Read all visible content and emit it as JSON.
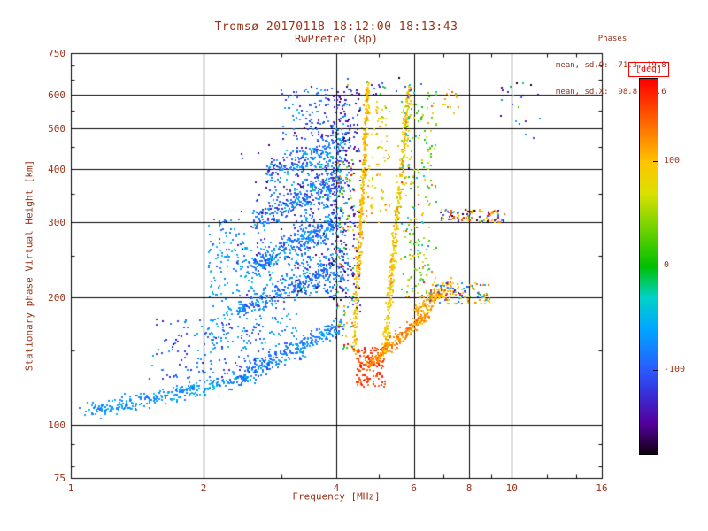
{
  "header": {
    "title": "Tromsø 20170118 18:12:00-18:13:43",
    "subtitle": "RwPretec (8p)",
    "stats_title": "Phases",
    "stats_line_o": "mean, sd,O: -71.3, 19.8",
    "stats_line_x": "mean, sd,X:  98.8, 21.6"
  },
  "axes": {
    "x_label": "Frequency [MHz]",
    "y_label": "Stationary phase Virtual Height [km]",
    "x_scale": "log",
    "y_scale": "log",
    "x_range": [
      1,
      16
    ],
    "y_range": [
      75,
      750
    ],
    "x_ticks": [
      1,
      2,
      4,
      6,
      8,
      10,
      16
    ],
    "y_ticks": [
      75,
      100,
      200,
      300,
      400,
      500,
      600,
      750
    ],
    "x_grid": [
      2,
      4,
      6,
      8,
      10
    ],
    "y_grid": [
      100,
      200,
      300,
      400,
      500,
      600
    ],
    "x_minor": [
      3,
      5,
      7,
      9,
      12,
      14
    ],
    "y_minor": [
      80,
      90,
      150,
      250,
      350,
      450,
      550,
      650,
      700
    ]
  },
  "colorbar": {
    "title": "[deg]",
    "range": [
      -180,
      180
    ],
    "tick_values": [
      100,
      0,
      -100
    ],
    "stops": [
      [
        -180,
        "#120012"
      ],
      [
        -150,
        "#55009e"
      ],
      [
        -120,
        "#3434dc"
      ],
      [
        -100,
        "#2a5aff"
      ],
      [
        -60,
        "#00a6ff"
      ],
      [
        -30,
        "#00d2c8"
      ],
      [
        0,
        "#00c000"
      ],
      [
        40,
        "#7cd400"
      ],
      [
        70,
        "#dce000"
      ],
      [
        100,
        "#ffc400"
      ],
      [
        130,
        "#ff7a00"
      ],
      [
        160,
        "#ff3000"
      ],
      [
        180,
        "#ff0000"
      ]
    ]
  },
  "colors": {
    "text": "#993016",
    "axis": "#000000",
    "deg_box": "#ff0000",
    "background": "#ffffff"
  },
  "chart_data": {
    "type": "scatter",
    "title": "Tromsø 20170118 18:12:00-18:13:43",
    "subtitle": "RwPretec (8p)",
    "xlabel": "Frequency [MHz]",
    "ylabel": "Stationary phase Virtual Height [km]",
    "color_label": "[deg]",
    "xlim": [
      1,
      16
    ],
    "ylim": [
      75,
      750
    ],
    "color_lim": [
      -180,
      180
    ],
    "x_scale": "log",
    "y_scale": "log",
    "grid": true,
    "marker_size_px": 2,
    "seed": 20170118,
    "clusters": [
      {
        "name": "e-tail",
        "kind": "band",
        "n": 260,
        "x": [
          1.08,
          2.3
        ],
        "y": [
          107,
          126
        ],
        "jx": 0.015,
        "jy": 0.02,
        "phase": [
          -70,
          15
        ]
      },
      {
        "name": "e-band",
        "kind": "band",
        "n": 320,
        "x": [
          2.3,
          4.15
        ],
        "y": [
          126,
          172
        ],
        "jx": 0.012,
        "jy": 0.025,
        "phase": [
          -80,
          18
        ]
      },
      {
        "name": "e-scatter",
        "kind": "blob",
        "n": 140,
        "x": [
          1.5,
          2.7
        ],
        "y": [
          128,
          178
        ],
        "phase": [
          -100,
          25
        ]
      },
      {
        "name": "left-arc",
        "kind": "blob",
        "n": 60,
        "x": [
          2.05,
          2.5
        ],
        "y": [
          235,
          305
        ],
        "phase": [
          -70,
          20
        ]
      },
      {
        "name": "f-arc-1",
        "kind": "band",
        "n": 240,
        "x": [
          2.4,
          3.9
        ],
        "y": [
          186,
          232
        ],
        "jx": 0.01,
        "jy": 0.03,
        "phase": [
          -85,
          18
        ]
      },
      {
        "name": "f-arc-2",
        "kind": "band",
        "n": 280,
        "x": [
          2.5,
          4.0
        ],
        "y": [
          232,
          300
        ],
        "jx": 0.01,
        "jy": 0.035,
        "phase": [
          -80,
          20
        ]
      },
      {
        "name": "f-arc-3",
        "kind": "band",
        "n": 280,
        "x": [
          2.6,
          4.1
        ],
        "y": [
          300,
          382
        ],
        "jx": 0.01,
        "jy": 0.04,
        "phase": [
          -88,
          22
        ]
      },
      {
        "name": "f-arc-4",
        "kind": "band",
        "n": 230,
        "x": [
          2.8,
          4.25
        ],
        "y": [
          382,
          470
        ],
        "jx": 0.01,
        "jy": 0.04,
        "phase": [
          -85,
          25
        ]
      },
      {
        "name": "f-upper",
        "kind": "blob",
        "n": 120,
        "x": [
          3.0,
          4.3
        ],
        "y": [
          470,
          625
        ],
        "phase": [
          -92,
          35
        ]
      },
      {
        "name": "cyan-low",
        "kind": "blob",
        "n": 210,
        "x": [
          2.05,
          3.25
        ],
        "y": [
          150,
          262
        ],
        "phase": [
          -62,
          16
        ]
      },
      {
        "name": "mid-dense",
        "kind": "blob",
        "n": 380,
        "x": [
          3.2,
          4.25
        ],
        "y": [
          200,
          430
        ],
        "phase": [
          -85,
          26
        ]
      },
      {
        "name": "dark-sprinkle",
        "kind": "blob",
        "n": 110,
        "x": [
          2.35,
          4.0
        ],
        "y": [
          200,
          505
        ],
        "phase": [
          -140,
          20
        ]
      },
      {
        "name": "navy-wall",
        "kind": "blob",
        "n": 190,
        "x": [
          3.95,
          4.55
        ],
        "y": [
          185,
          610
        ],
        "phase": [
          -132,
          26
        ]
      },
      {
        "name": "x-trace-1",
        "kind": "band",
        "n": 360,
        "x": [
          4.38,
          4.72
        ],
        "y": [
          148,
          625
        ],
        "jx": 0.006,
        "jy": 0.02,
        "phase": [
          100,
          16
        ]
      },
      {
        "name": "x-trace-2",
        "kind": "band",
        "n": 360,
        "x": [
          5.15,
          5.85
        ],
        "y": [
          150,
          625
        ],
        "jx": 0.008,
        "jy": 0.02,
        "phase": [
          95,
          20
        ]
      },
      {
        "name": "yellow-bits",
        "kind": "blob",
        "n": 85,
        "x": [
          4.62,
          5.3
        ],
        "y": [
          300,
          565
        ],
        "phase": [
          92,
          26
        ]
      },
      {
        "name": "green-mix",
        "kind": "blob",
        "n": 210,
        "x": [
          5.6,
          6.75
        ],
        "y": [
          200,
          610
        ],
        "phase": [
          35,
          55
        ]
      },
      {
        "name": "red-cusp",
        "kind": "blob",
        "n": 140,
        "x": [
          4.45,
          5.15
        ],
        "y": [
          123,
          152
        ],
        "phase": [
          158,
          14
        ]
      },
      {
        "name": "orange-arc",
        "kind": "band",
        "n": 230,
        "x": [
          4.7,
          6.55
        ],
        "y": [
          138,
          186
        ],
        "jx": 0.008,
        "jy": 0.02,
        "phase": [
          120,
          13
        ]
      },
      {
        "name": "orange-arc-2",
        "kind": "band",
        "n": 110,
        "x": [
          6.0,
          7.35
        ],
        "y": [
          186,
          214
        ],
        "jx": 0.008,
        "jy": 0.02,
        "phase": [
          112,
          13
        ]
      },
      {
        "name": "strip-310-warm",
        "kind": "blob",
        "n": 55,
        "x": [
          6.9,
          9.7
        ],
        "y": [
          300,
          322
        ],
        "phase": [
          105,
          35
        ]
      },
      {
        "name": "strip-310-cool",
        "kind": "blob",
        "n": 35,
        "x": [
          6.9,
          9.6
        ],
        "y": [
          300,
          322
        ],
        "phase": [
          -115,
          45
        ]
      },
      {
        "name": "strip-310-darkred",
        "kind": "blob",
        "n": 14,
        "x": [
          7.0,
          9.5
        ],
        "y": [
          302,
          318
        ],
        "phase": [
          170,
          6
        ]
      },
      {
        "name": "strip-200-warm",
        "kind": "blob",
        "n": 90,
        "x": [
          6.45,
          9.0
        ],
        "y": [
          192,
          216
        ],
        "phase": [
          100,
          40
        ]
      },
      {
        "name": "strip-200-cool",
        "kind": "blob",
        "n": 40,
        "x": [
          6.5,
          8.8
        ],
        "y": [
          192,
          216
        ],
        "phase": [
          -95,
          35
        ]
      },
      {
        "name": "mix-mid",
        "kind": "blob",
        "n": 90,
        "x": [
          4.0,
          4.4
        ],
        "y": [
          150,
          430
        ],
        "phase": [
          60,
          80
        ]
      },
      {
        "name": "outliers-right",
        "kind": "blob",
        "n": 22,
        "x": [
          9.4,
          11.6
        ],
        "y": [
          470,
          645
        ],
        "phase": [
          -110,
          55
        ]
      },
      {
        "name": "outliers-top",
        "kind": "blob",
        "n": 14,
        "x": [
          6.95,
          7.6
        ],
        "y": [
          540,
          625
        ],
        "phase": [
          100,
          25
        ]
      },
      {
        "name": "top-sparse",
        "kind": "blob",
        "n": 26,
        "x": [
          4.2,
          6.3
        ],
        "y": [
          575,
          655
        ],
        "phase": [
          -80,
          70
        ]
      }
    ]
  }
}
